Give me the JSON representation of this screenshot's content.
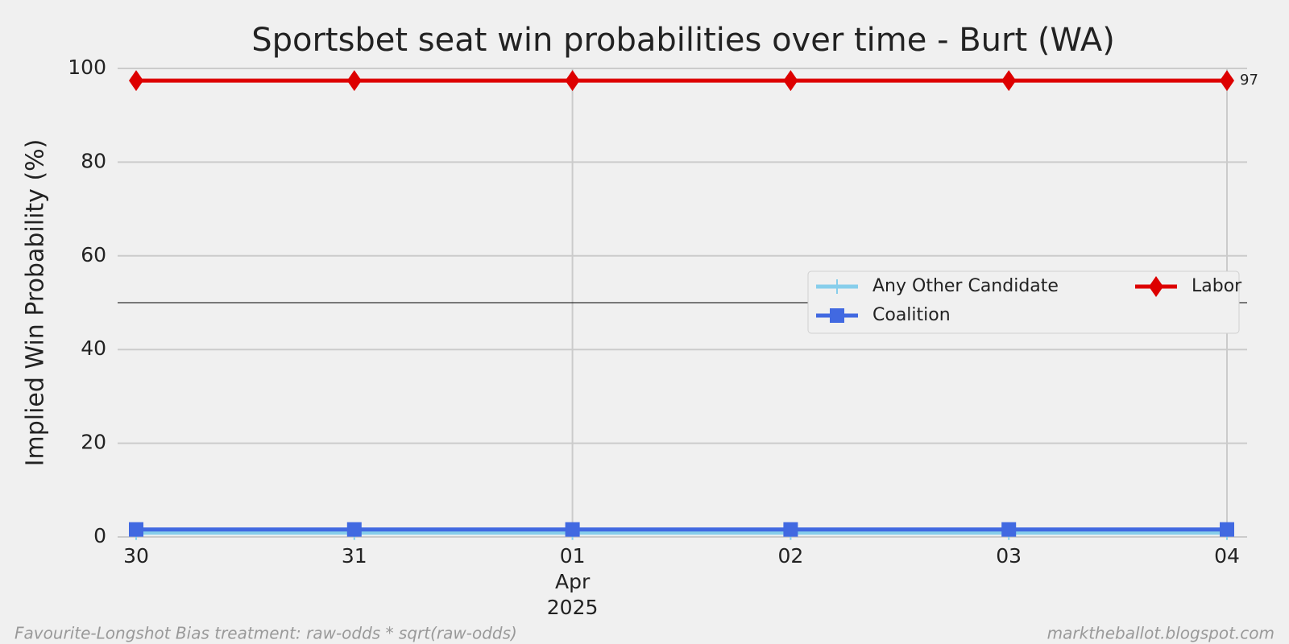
{
  "chart_data": {
    "type": "line",
    "title": "Sportsbet seat win probabilities over time - Burt (WA)",
    "y_label": "Implied Win Probability (%)",
    "categories": [
      "30",
      "31",
      "01",
      "02",
      "03",
      "04"
    ],
    "x_month_label": "Apr",
    "x_year_label": "2025",
    "x_grid": [
      2,
      5
    ],
    "series": [
      {
        "name": "Any Other Candidate",
        "color": "#87ceeb",
        "marker": "plus",
        "values": [
          0.9,
          0.9,
          0.9,
          0.9,
          0.9,
          0.9
        ]
      },
      {
        "name": "Coalition",
        "color": "#4169e1",
        "marker": "square",
        "values": [
          1.6,
          1.6,
          1.6,
          1.6,
          1.6,
          1.6
        ]
      },
      {
        "name": "Labor",
        "color": "#dd0000",
        "marker": "diamond",
        "values": [
          97.4,
          97.4,
          97.4,
          97.4,
          97.4,
          97.4
        ],
        "value_labels": [
          null,
          null,
          null,
          null,
          null,
          "97"
        ]
      }
    ],
    "reference_line": 50,
    "ylim": [
      0,
      100
    ],
    "yticks": [
      0,
      20,
      40,
      60,
      80,
      100
    ],
    "grid": true,
    "legend": "right",
    "footer_left": "Favourite-Longshot Bias treatment: raw-odds * sqrt(raw-odds)",
    "footer_right": "marktheballot.blogspot.com"
  }
}
